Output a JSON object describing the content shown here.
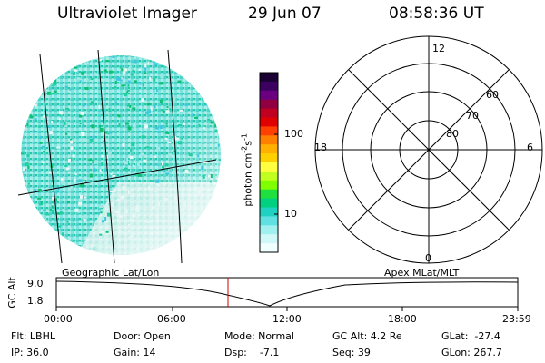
{
  "header": {
    "title": "Ultraviolet Imager",
    "date": "29 Jun 07",
    "time": "08:58:36 UT"
  },
  "image_panel": {
    "label": "Geographic Lat/Lon"
  },
  "colorbar": {
    "unit_label_base": "photon cm",
    "ticks": [
      "100",
      "10"
    ],
    "colors": [
      "#1a0033",
      "#3b0060",
      "#6a0080",
      "#900040",
      "#c00020",
      "#e00000",
      "#ff4000",
      "#ff8000",
      "#ffb000",
      "#ffd000",
      "#ffff40",
      "#c0ff20",
      "#80ff00",
      "#20e040",
      "#00d080",
      "#20d0c0",
      "#60e0e0",
      "#a0f0f0",
      "#d0f8f8",
      "#f0ffff"
    ]
  },
  "polar_plot": {
    "label": "Apex MLat/MLT",
    "mlt_labels": {
      "top": "12",
      "left": "18",
      "right": "6",
      "bottom": "0"
    },
    "lat_labels": [
      "60",
      "70",
      "80"
    ]
  },
  "timeline": {
    "ylabel": "GC Alt",
    "ytick_top": "9.0",
    "ytick_bottom": "1.8",
    "xticks": [
      "00:00",
      "06:00",
      "12:00",
      "18:00",
      "23:59"
    ],
    "current_time_marker": "08:58"
  },
  "info": {
    "flt": "Flt: LBHL",
    "ip": "IP: 36.0",
    "door": "Door: Open",
    "gain": "Gain: 14",
    "mode": "Mode: Normal",
    "dsp": "Dsp:    -7.1",
    "gc_alt": "GC Alt: 4.2 Re",
    "seq": "Seq: 39",
    "glat": "GLat:  -27.4",
    "glon": "GLon: 267.7"
  }
}
